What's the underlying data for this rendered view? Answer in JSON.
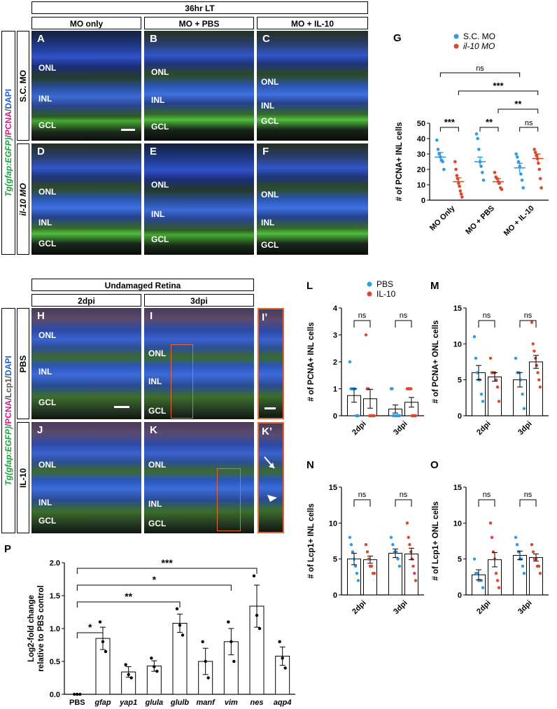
{
  "top": {
    "header": "36hr LT",
    "cols": [
      "MO only",
      "MO + PBS",
      "MO + IL-10"
    ],
    "side_label": {
      "p1": "Tg(gfap:EGFP)",
      "p2": "/",
      "p3": "PCNA",
      "p4": "/",
      "p5": "DAPI"
    },
    "rows": [
      "S.C. MO",
      "il-10 MO"
    ],
    "panels": {
      "A": {
        "letter": "A",
        "onl": "ONL",
        "inl": "INL",
        "gcl": "GCL"
      },
      "B": {
        "letter": "B",
        "onl": "ONL",
        "inl": "INL",
        "gcl": "GCL"
      },
      "C": {
        "letter": "C",
        "onl": "ONL",
        "inl": "INL",
        "gcl": "GCL"
      },
      "D": {
        "letter": "D",
        "onl": "ONL",
        "inl": "INL",
        "gcl": "GCL"
      },
      "E": {
        "letter": "E",
        "onl": "ONL",
        "inl": "INL",
        "gcl": "GCL"
      },
      "F": {
        "letter": "F",
        "onl": "ONL",
        "inl": "INL",
        "gcl": "GCL"
      }
    }
  },
  "mid": {
    "header": "Undamaged Retina",
    "cols": [
      "2dpi",
      "3dpi"
    ],
    "side_label": {
      "p1": "Tg(gfap:EGFP)",
      "p2": "/",
      "p3": "PCNA",
      "p4": "/",
      "p5": "Lcp1",
      "p6": "/",
      "p7": "DAPI"
    },
    "rows": [
      "PBS",
      "IL-10"
    ],
    "panels": {
      "H": {
        "letter": "H",
        "onl": "ONL",
        "inl": "INL",
        "gcl": "GCL"
      },
      "I": {
        "letter": "I",
        "onl": "ONL",
        "inl": "INL",
        "gcl": "GCL"
      },
      "Ip": {
        "letter": "I’"
      },
      "J": {
        "letter": "J",
        "onl": "ONL",
        "inl": "INL",
        "gcl": "GCL"
      },
      "K": {
        "letter": "K",
        "onl": "ONL",
        "inl": "INL",
        "gcl": "GCL"
      },
      "Kp": {
        "letter": "K’"
      }
    }
  },
  "colors": {
    "blue": "#2d9be6",
    "red": "#e0462b",
    "orange": "#e0683a"
  },
  "chart_data": [
    {
      "panel": "G",
      "type": "scatter",
      "ylabel": "# of PCNA+ INL cells",
      "ylim": [
        0,
        50
      ],
      "yticks": [
        0,
        10,
        20,
        30,
        40,
        50
      ],
      "categories": [
        "MO Only",
        "MO + PBS",
        "MO + IL-10"
      ],
      "legend": [
        "S.C. MO",
        "il-10 MO"
      ],
      "series": [
        {
          "name": "S.C. MO",
          "color": "#2d9be6",
          "means": [
            28,
            25,
            21
          ],
          "sem": [
            3,
            3,
            3
          ],
          "points": [
            [
              39,
              33,
              30,
              28,
              26,
              25,
              20
            ],
            [
              43,
              40,
              33,
              25,
              22,
              18,
              13
            ],
            [
              30,
              28,
              25,
              22,
              17,
              13,
              8
            ]
          ]
        },
        {
          "name": "il-10 MO",
          "color": "#e0462b",
          "means": [
            12,
            12,
            27
          ],
          "sem": [
            2.5,
            2,
            3
          ],
          "points": [
            [
              25,
              20,
              16,
              14,
              11,
              9,
              6,
              4,
              2
            ],
            [
              18,
              15,
              14,
              12,
              11,
              8,
              7
            ],
            [
              33,
              31,
              29,
              27,
              24,
              20,
              14,
              8
            ]
          ]
        }
      ],
      "significance": [
        {
          "label": "***",
          "span": "MO Only S.C. vs il-10"
        },
        {
          "label": "**",
          "span": "MO + PBS S.C. vs il-10"
        },
        {
          "label": "ns",
          "span": "MO + IL-10 S.C. vs il-10"
        },
        {
          "label": "**",
          "span": "MO + PBS il-10 vs MO + IL-10 il-10"
        },
        {
          "label": "***",
          "span": "MO Only il-10 vs MO + IL-10 il-10"
        },
        {
          "label": "ns",
          "span": "MO Only S.C. vs MO + IL-10 S.C."
        }
      ]
    },
    {
      "panel": "L",
      "type": "bar",
      "ylabel": "# of PCNA+ INL cells",
      "ylim": [
        0,
        4
      ],
      "yticks": [
        0,
        1,
        2,
        3,
        4
      ],
      "categories": [
        "2dpi",
        "3dpi"
      ],
      "legend": [
        "PBS",
        "IL-10"
      ],
      "series": [
        {
          "name": "PBS",
          "color": "#2d9be6",
          "values": [
            0.75,
            0.25
          ],
          "sem": [
            0.25,
            0.15
          ],
          "points": [
            [
              2,
              1,
              1,
              1,
              1,
              1,
              0,
              0,
              0
            ],
            [
              1,
              1,
              0,
              0,
              0,
              0,
              0,
              0,
              0
            ]
          ]
        },
        {
          "name": "IL-10",
          "color": "#e0462b",
          "values": [
            0.63,
            0.5
          ],
          "sem": [
            0.35,
            0.18
          ],
          "points": [
            [
              3,
              1,
              1,
              0,
              0,
              0,
              0,
              0
            ],
            [
              1,
              1,
              1,
              1,
              1,
              0,
              0,
              0,
              0,
              0
            ]
          ]
        }
      ],
      "significance": [
        "ns",
        "ns"
      ]
    },
    {
      "panel": "M",
      "type": "bar",
      "ylabel": "# of PCNA+ ONL cells",
      "ylim": [
        0,
        15
      ],
      "yticks": [
        0,
        5,
        10,
        15
      ],
      "categories": [
        "2dpi",
        "3dpi"
      ],
      "series": [
        {
          "name": "PBS",
          "color": "#2d9be6",
          "values": [
            6,
            5
          ],
          "sem": [
            1,
            1
          ],
          "points": [
            [
              11,
              8,
              6,
              5,
              5,
              3,
              2
            ],
            [
              8,
              6,
              6,
              5,
              3,
              1
            ]
          ]
        },
        {
          "name": "IL-10",
          "color": "#e0462b",
          "values": [
            5.4,
            7.5
          ],
          "sem": [
            0.6,
            0.9
          ],
          "points": [
            [
              8,
              6,
              6,
              6,
              5,
              4,
              2
            ],
            [
              13,
              10,
              9,
              8,
              7,
              6,
              5,
              4
            ]
          ]
        }
      ],
      "significance": [
        "ns",
        "ns"
      ]
    },
    {
      "panel": "N",
      "type": "bar",
      "ylabel": "# of Lcp1+ INL cells",
      "ylim": [
        0,
        15
      ],
      "yticks": [
        0,
        5,
        10,
        15
      ],
      "categories": [
        "2dpi",
        "3dpi"
      ],
      "series": [
        {
          "name": "PBS",
          "color": "#2d9be6",
          "values": [
            5,
            5.8
          ],
          "sem": [
            0.8,
            0.6
          ],
          "points": [
            [
              8,
              7,
              6,
              5,
              4,
              3,
              2
            ],
            [
              8,
              7,
              6,
              6,
              5,
              4
            ]
          ]
        },
        {
          "name": "IL-10",
          "color": "#e0462b",
          "values": [
            4.9,
            5.7
          ],
          "sem": [
            0.5,
            0.8
          ],
          "points": [
            [
              7,
              6,
              5,
              4,
              4,
              3,
              3
            ],
            [
              10,
              8,
              7,
              6,
              5,
              4,
              3,
              2
            ]
          ]
        }
      ],
      "significance": [
        "ns",
        "ns"
      ]
    },
    {
      "panel": "O",
      "type": "bar",
      "ylabel": "# of Lcp1+ ONL cells",
      "ylim": [
        0,
        15
      ],
      "yticks": [
        0,
        5,
        10,
        15
      ],
      "categories": [
        "2dpi",
        "3dpi"
      ],
      "series": [
        {
          "name": "PBS",
          "color": "#2d9be6",
          "values": [
            2.8,
            5.5
          ],
          "sem": [
            0.7,
            0.6
          ],
          "points": [
            [
              5,
              3,
              3,
              2,
              2,
              2,
              1
            ],
            [
              8,
              7,
              6,
              5,
              5,
              4,
              3
            ]
          ]
        },
        {
          "name": "IL-10",
          "color": "#e0462b",
          "values": [
            4.9,
            5.2
          ],
          "sem": [
            1,
            0.5
          ],
          "points": [
            [
              10,
              8,
              6,
              5,
              3,
              2,
              1
            ],
            [
              7,
              6,
              5,
              5,
              4,
              4,
              3
            ]
          ]
        }
      ],
      "significance": [
        "ns",
        "ns"
      ]
    },
    {
      "panel": "P",
      "type": "bar",
      "ylabel": "Log2-fold change relative to PBS control",
      "ylim": [
        0,
        2.0
      ],
      "yticks": [
        0.0,
        0.5,
        1.0,
        1.5,
        2.0
      ],
      "categories": [
        "PBS",
        "gfap",
        "yap1",
        "glula",
        "glulb",
        "manf",
        "vim",
        "nes",
        "aqp4"
      ],
      "values": [
        0,
        0.85,
        0.34,
        0.43,
        1.08,
        0.5,
        0.8,
        1.34,
        0.58
      ],
      "sem": [
        0,
        0.17,
        0.08,
        0.08,
        0.14,
        0.2,
        0.2,
        0.32,
        0.14
      ],
      "points": [
        [
          0,
          0,
          0
        ],
        [
          1.1,
          0.8,
          0.65
        ],
        [
          0.45,
          0.3,
          0.25
        ],
        [
          0.55,
          0.42,
          0.35
        ],
        [
          1.3,
          1.05,
          0.9
        ],
        [
          0.8,
          0.5,
          0.25
        ],
        [
          1.1,
          0.8,
          0.5
        ],
        [
          1.8,
          1.2,
          1.0
        ],
        [
          0.8,
          0.55,
          0.4
        ]
      ],
      "significance": [
        {
          "label": "*",
          "to": "gfap"
        },
        {
          "label": "**",
          "to": "glulb"
        },
        {
          "label": "*",
          "to": "vim"
        },
        {
          "label": "***",
          "to": "nes"
        }
      ]
    }
  ]
}
